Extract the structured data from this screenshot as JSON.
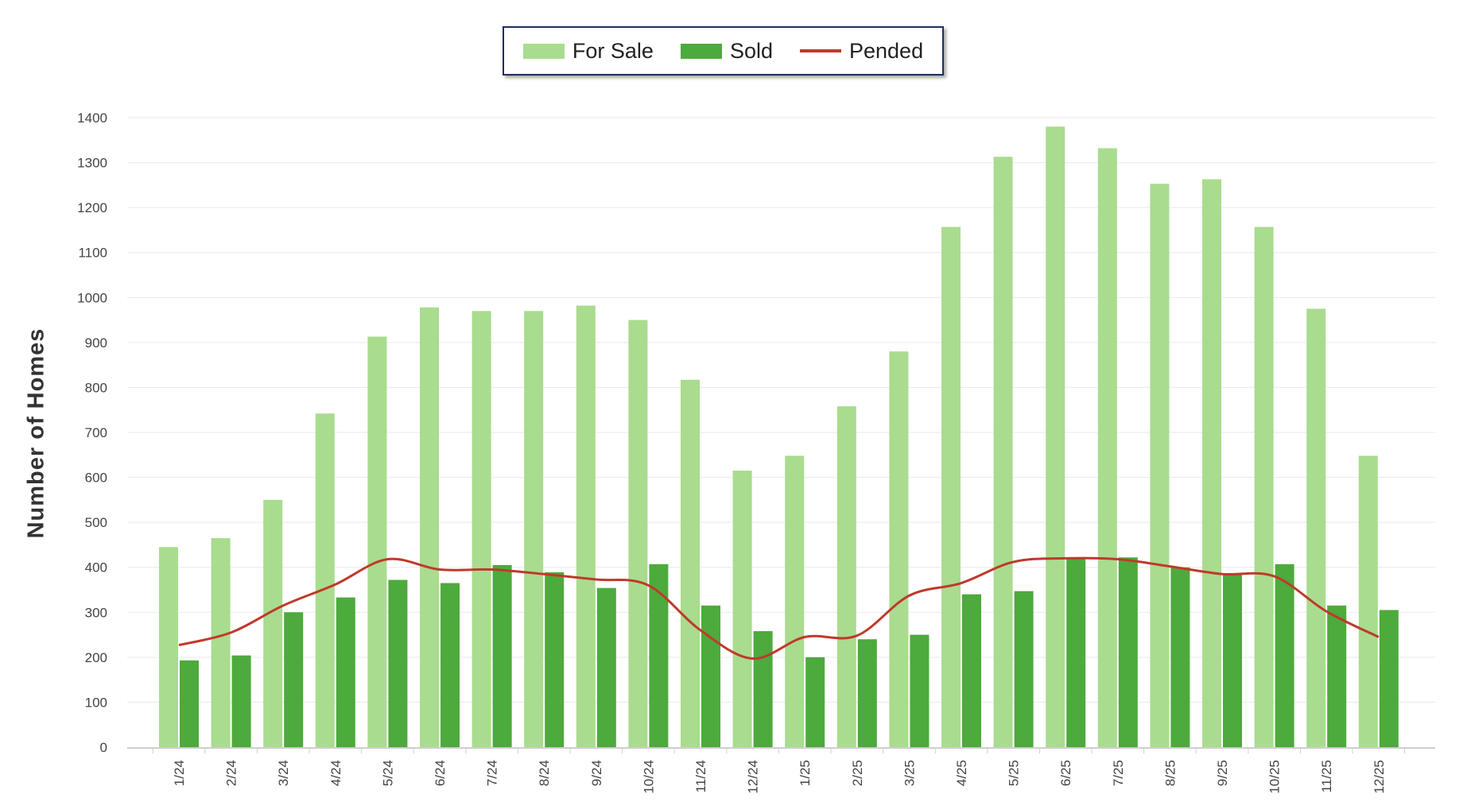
{
  "chart_data": {
    "type": "bar",
    "title": "",
    "xlabel": "",
    "ylabel": "Number of Homes",
    "ylim": [
      0,
      1400
    ],
    "yticks": [
      0,
      100,
      200,
      300,
      400,
      500,
      600,
      700,
      800,
      900,
      1000,
      1100,
      1200,
      1300,
      1400
    ],
    "grid": true,
    "legend_position": "top-center",
    "categories": [
      "1/24",
      "2/24",
      "3/24",
      "4/24",
      "5/24",
      "6/24",
      "7/24",
      "8/24",
      "9/24",
      "10/24",
      "11/24",
      "12/24",
      "1/25",
      "2/25",
      "3/25",
      "4/25",
      "5/25",
      "6/25",
      "7/25",
      "8/25",
      "9/25",
      "10/25",
      "11/25",
      "12/25"
    ],
    "series": [
      {
        "name": "For Sale",
        "kind": "bar",
        "color": "#a9dc8e",
        "values": [
          445,
          465,
          550,
          742,
          913,
          978,
          970,
          970,
          982,
          950,
          817,
          615,
          648,
          758,
          880,
          1157,
          1313,
          1380,
          1332,
          1253,
          1263,
          1157,
          975,
          648
        ]
      },
      {
        "name": "Sold",
        "kind": "bar",
        "color": "#4daa3c",
        "values": [
          193,
          204,
          300,
          333,
          372,
          365,
          405,
          389,
          354,
          407,
          315,
          258,
          200,
          240,
          250,
          340,
          347,
          420,
          422,
          400,
          383,
          407,
          315,
          305
        ]
      },
      {
        "name": "Pended",
        "kind": "line",
        "color": "#c0392b",
        "values": [
          227,
          255,
          315,
          362,
          418,
          395,
          395,
          385,
          373,
          360,
          260,
          197,
          245,
          248,
          337,
          365,
          412,
          420,
          418,
          402,
          385,
          380,
          302,
          245
        ]
      }
    ]
  }
}
